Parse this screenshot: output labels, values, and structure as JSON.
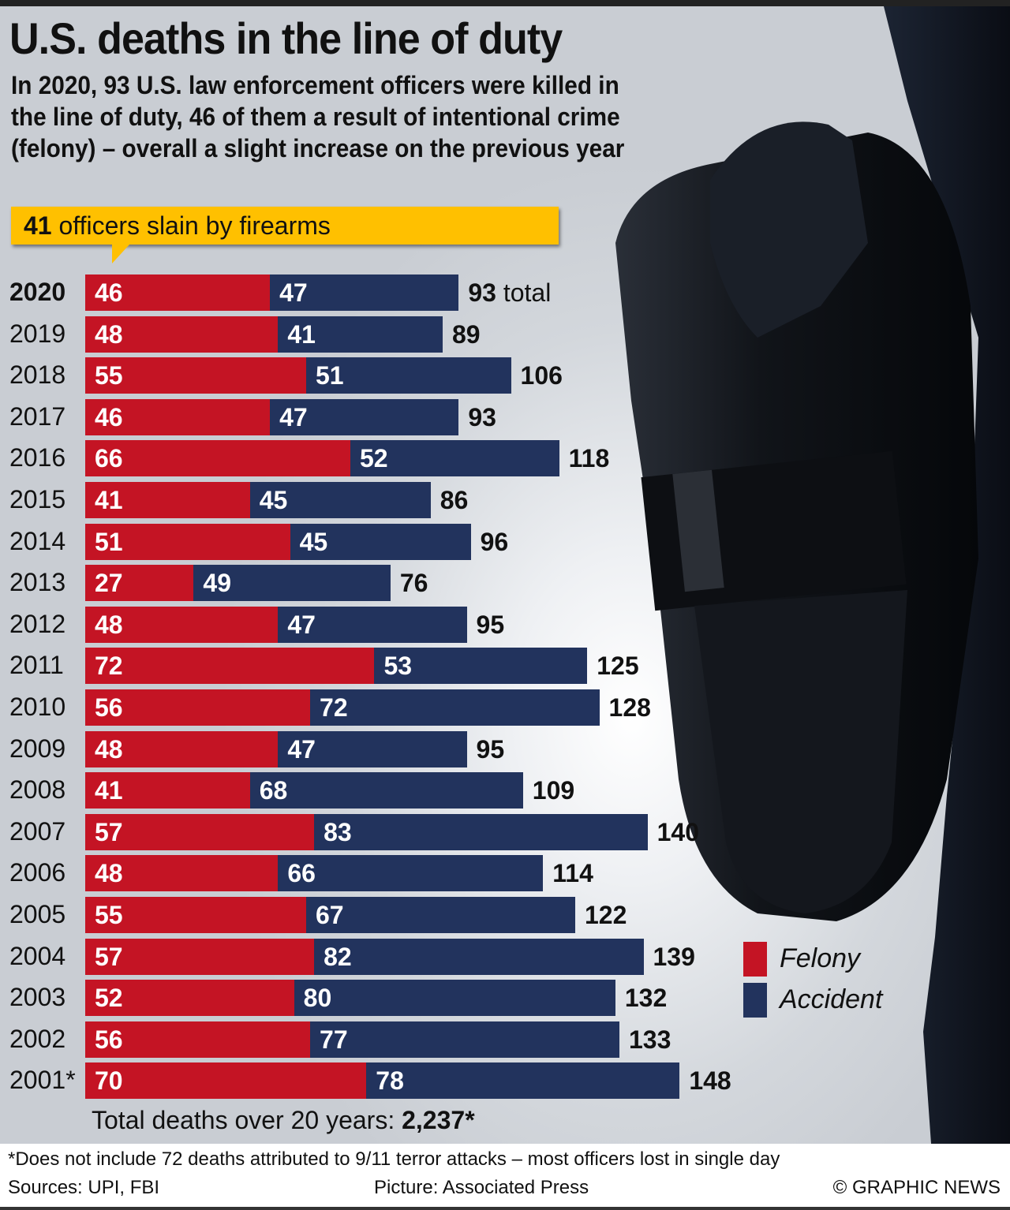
{
  "header": {
    "title": "U.S. deaths in the line of duty",
    "subtitle": "In 2020, 93 U.S. law enforcement officers were killed in the line of duty, 46 of them a result of intentional crime (felony) – overall a slight increase on the previous year"
  },
  "callout": {
    "number": "41",
    "text": " officers slain by firearms"
  },
  "colors": {
    "felony": "#c41424",
    "accident": "#22335d",
    "callout": "#ffc000"
  },
  "chart_data": {
    "type": "bar",
    "orientation": "horizontal",
    "stacked": true,
    "title": "U.S. deaths in the line of duty",
    "categories": [
      "2020",
      "2019",
      "2018",
      "2017",
      "2016",
      "2015",
      "2014",
      "2013",
      "2012",
      "2011",
      "2010",
      "2009",
      "2008",
      "2007",
      "2006",
      "2005",
      "2004",
      "2003",
      "2002",
      "2001*"
    ],
    "series": [
      {
        "name": "Felony",
        "color": "#c41424",
        "values": [
          46,
          48,
          55,
          46,
          66,
          41,
          51,
          27,
          48,
          72,
          56,
          48,
          41,
          57,
          48,
          55,
          57,
          52,
          56,
          70
        ]
      },
      {
        "name": "Accident",
        "color": "#22335d",
        "values": [
          47,
          41,
          51,
          47,
          52,
          45,
          45,
          49,
          47,
          53,
          72,
          47,
          68,
          83,
          66,
          67,
          82,
          80,
          77,
          78
        ]
      }
    ],
    "totals": [
      93,
      89,
      106,
      93,
      118,
      86,
      96,
      76,
      95,
      125,
      128,
      95,
      109,
      140,
      114,
      122,
      139,
      132,
      133,
      148
    ],
    "first_total_suffix": " total",
    "highlighted_category": "2020",
    "xlim": [
      0,
      148
    ],
    "grid": false,
    "axis_labels_shown": false,
    "legend": {
      "placement": "bottom-right",
      "entries": [
        "Felony",
        "Accident"
      ]
    },
    "xlabel": "",
    "ylabel": ""
  },
  "legend": {
    "items": [
      {
        "label": "Felony"
      },
      {
        "label": "Accident"
      }
    ]
  },
  "summary": {
    "label": "Total deaths over 20 years: ",
    "value": "2,237*"
  },
  "footer": {
    "note": "*Does not include 72 deaths attributed to 9/11 terror attacks – most officers lost in single day",
    "sources": "Sources: UPI, FBI",
    "picture": "Picture: Associated Press",
    "copyright": "© GRAPHIC NEWS"
  },
  "photo": {
    "subject": "police-holster-photo"
  }
}
